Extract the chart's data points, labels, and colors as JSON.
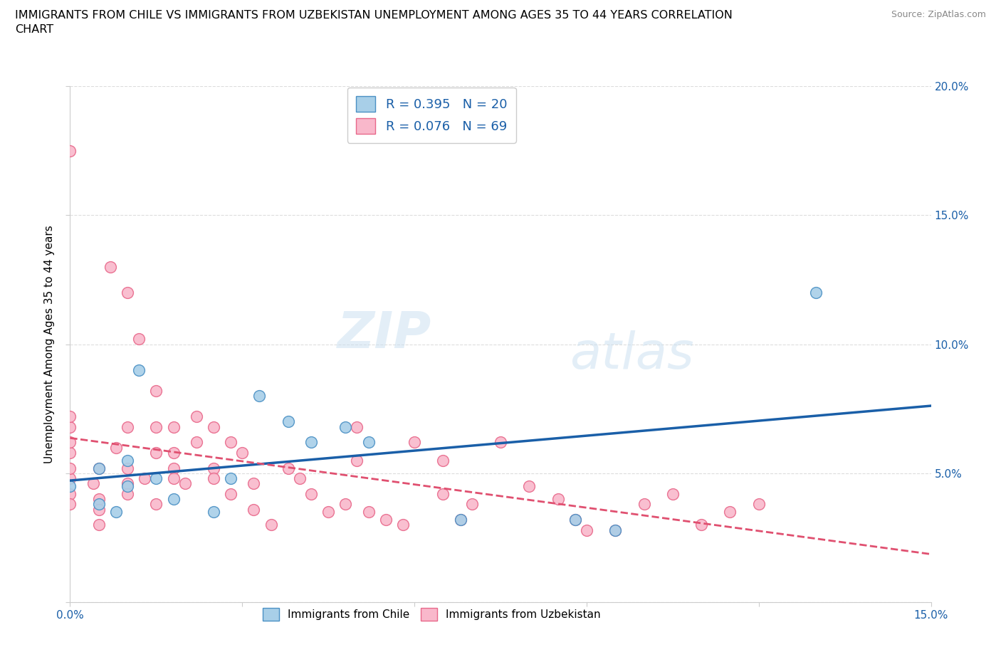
{
  "title": "IMMIGRANTS FROM CHILE VS IMMIGRANTS FROM UZBEKISTAN UNEMPLOYMENT AMONG AGES 35 TO 44 YEARS CORRELATION\nCHART",
  "source": "Source: ZipAtlas.com",
  "ylabel": "Unemployment Among Ages 35 to 44 years",
  "xlim": [
    0.0,
    0.15
  ],
  "ylim": [
    0.0,
    0.2
  ],
  "xtick_vals": [
    0.0,
    0.03,
    0.06,
    0.09,
    0.12,
    0.15
  ],
  "xtick_labels": [
    "0.0%",
    "",
    "",
    "",
    "",
    "15.0%"
  ],
  "ytick_vals": [
    0.0,
    0.05,
    0.1,
    0.15,
    0.2
  ],
  "ytick_labels_right": [
    "",
    "5.0%",
    "10.0%",
    "15.0%",
    "20.0%"
  ],
  "legend1_r": "0.395",
  "legend1_n": "20",
  "legend2_r": "0.076",
  "legend2_n": "69",
  "legend_bottom_label1": "Immigrants from Chile",
  "legend_bottom_label2": "Immigrants from Uzbekistan",
  "watermark_zip": "ZIP",
  "watermark_atlas": "atlas",
  "chile_color_fill": "#a8cfe8",
  "chile_color_edge": "#4a90c4",
  "chile_line_color": "#1a5fa8",
  "uzbek_color_fill": "#f9b8cb",
  "uzbek_color_edge": "#e8688a",
  "uzbek_line_color": "#e05070",
  "chile_points": [
    [
      0.0,
      0.045
    ],
    [
      0.005,
      0.052
    ],
    [
      0.005,
      0.038
    ],
    [
      0.008,
      0.035
    ],
    [
      0.01,
      0.055
    ],
    [
      0.01,
      0.045
    ],
    [
      0.012,
      0.09
    ],
    [
      0.015,
      0.048
    ],
    [
      0.018,
      0.04
    ],
    [
      0.025,
      0.035
    ],
    [
      0.028,
      0.048
    ],
    [
      0.033,
      0.08
    ],
    [
      0.038,
      0.07
    ],
    [
      0.042,
      0.062
    ],
    [
      0.048,
      0.068
    ],
    [
      0.052,
      0.062
    ],
    [
      0.068,
      0.032
    ],
    [
      0.088,
      0.032
    ],
    [
      0.095,
      0.028
    ],
    [
      0.13,
      0.12
    ]
  ],
  "uzbek_points": [
    [
      0.0,
      0.048
    ],
    [
      0.0,
      0.052
    ],
    [
      0.0,
      0.058
    ],
    [
      0.0,
      0.042
    ],
    [
      0.0,
      0.038
    ],
    [
      0.0,
      0.062
    ],
    [
      0.0,
      0.068
    ],
    [
      0.0,
      0.072
    ],
    [
      0.0,
      0.175
    ],
    [
      0.004,
      0.046
    ],
    [
      0.005,
      0.052
    ],
    [
      0.005,
      0.04
    ],
    [
      0.005,
      0.036
    ],
    [
      0.005,
      0.03
    ],
    [
      0.007,
      0.13
    ],
    [
      0.008,
      0.06
    ],
    [
      0.01,
      0.052
    ],
    [
      0.01,
      0.046
    ],
    [
      0.01,
      0.042
    ],
    [
      0.01,
      0.068
    ],
    [
      0.01,
      0.12
    ],
    [
      0.012,
      0.102
    ],
    [
      0.013,
      0.048
    ],
    [
      0.015,
      0.058
    ],
    [
      0.015,
      0.068
    ],
    [
      0.015,
      0.038
    ],
    [
      0.015,
      0.082
    ],
    [
      0.018,
      0.052
    ],
    [
      0.018,
      0.048
    ],
    [
      0.018,
      0.058
    ],
    [
      0.018,
      0.068
    ],
    [
      0.02,
      0.046
    ],
    [
      0.022,
      0.062
    ],
    [
      0.022,
      0.072
    ],
    [
      0.025,
      0.052
    ],
    [
      0.025,
      0.048
    ],
    [
      0.025,
      0.068
    ],
    [
      0.028,
      0.042
    ],
    [
      0.028,
      0.062
    ],
    [
      0.03,
      0.058
    ],
    [
      0.032,
      0.046
    ],
    [
      0.032,
      0.036
    ],
    [
      0.035,
      0.03
    ],
    [
      0.038,
      0.052
    ],
    [
      0.04,
      0.048
    ],
    [
      0.042,
      0.042
    ],
    [
      0.045,
      0.035
    ],
    [
      0.048,
      0.038
    ],
    [
      0.05,
      0.055
    ],
    [
      0.05,
      0.068
    ],
    [
      0.052,
      0.035
    ],
    [
      0.055,
      0.032
    ],
    [
      0.058,
      0.03
    ],
    [
      0.06,
      0.062
    ],
    [
      0.065,
      0.042
    ],
    [
      0.065,
      0.055
    ],
    [
      0.068,
      0.032
    ],
    [
      0.07,
      0.038
    ],
    [
      0.075,
      0.062
    ],
    [
      0.08,
      0.045
    ],
    [
      0.085,
      0.04
    ],
    [
      0.088,
      0.032
    ],
    [
      0.09,
      0.028
    ],
    [
      0.095,
      0.028
    ],
    [
      0.1,
      0.038
    ],
    [
      0.105,
      0.042
    ],
    [
      0.11,
      0.03
    ],
    [
      0.115,
      0.035
    ],
    [
      0.12,
      0.038
    ]
  ]
}
